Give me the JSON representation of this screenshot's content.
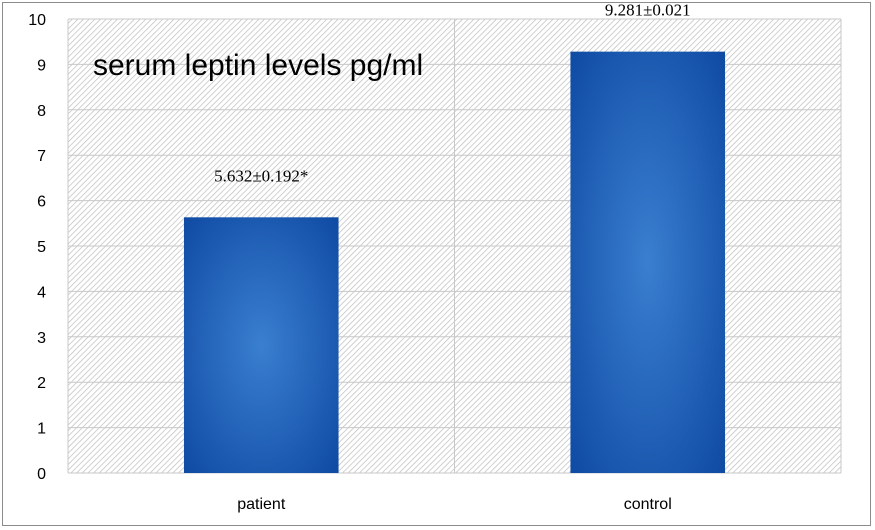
{
  "chart_data": {
    "type": "bar",
    "title": "serum leptin levels pg/ml",
    "categories": [
      "patient",
      "control"
    ],
    "values": [
      5.632,
      9.281
    ],
    "data_labels": [
      "5.632±0.192*",
      "9.281±0.021"
    ],
    "ylim": [
      0,
      10
    ],
    "y_ticks": [
      "0",
      "1",
      "2",
      "3",
      "4",
      "5",
      "6",
      "7",
      "8",
      "9",
      "10"
    ],
    "xlabel": "",
    "ylabel": "",
    "grid": true,
    "legend": "none",
    "colors": {
      "bar_center": "#3a7fd0",
      "bar_edge": "#0f4aa3",
      "grid": "#c8c8c8",
      "hatch": "#b9b9b9"
    }
  }
}
